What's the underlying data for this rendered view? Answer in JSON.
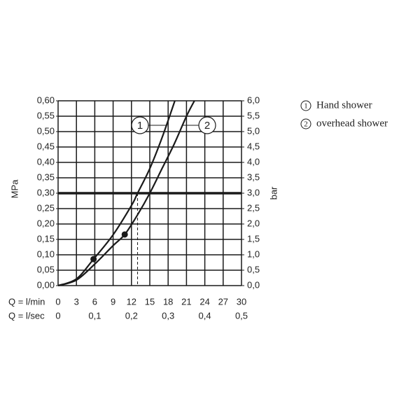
{
  "chart_data": {
    "type": "line",
    "xlabel": "Q = l/min",
    "x2label": "Q = l/sec",
    "ylabel": "MPa",
    "y2label": "bar",
    "xlim": [
      0,
      30
    ],
    "xticks": [
      0,
      3,
      6,
      9,
      12,
      15,
      18,
      21,
      24,
      27,
      30
    ],
    "x2lim": [
      0,
      0.5
    ],
    "x2ticks": [
      0,
      {
        "value": 0.1,
        "label": "0,1"
      },
      {
        "value": 0.2,
        "label": "0,2"
      },
      {
        "value": 0.3,
        "label": "0,3"
      },
      {
        "value": 0.4,
        "label": "0,4"
      },
      {
        "value": 0.5,
        "label": "0,5"
      }
    ],
    "ylim": [
      0,
      0.6
    ],
    "yticks": [
      {
        "value": 0,
        "label": "0,00"
      },
      {
        "value": 0.05,
        "label": "0,05"
      },
      {
        "value": 0.1,
        "label": "0,10"
      },
      {
        "value": 0.15,
        "label": "0,15"
      },
      {
        "value": 0.2,
        "label": "0,20"
      },
      {
        "value": 0.25,
        "label": "0,25"
      },
      {
        "value": 0.3,
        "label": "0,30"
      },
      {
        "value": 0.35,
        "label": "0,35"
      },
      {
        "value": 0.4,
        "label": "0,40"
      },
      {
        "value": 0.45,
        "label": "0,45"
      },
      {
        "value": 0.5,
        "label": "0,50"
      },
      {
        "value": 0.55,
        "label": "0,55"
      },
      {
        "value": 0.6,
        "label": "0,60"
      }
    ],
    "y2lim": [
      0,
      6
    ],
    "y2ticks": [
      {
        "value": 0,
        "label": "0,0"
      },
      {
        "value": 0.5,
        "label": "0,5"
      },
      {
        "value": 1,
        "label": "1,0"
      },
      {
        "value": 1.5,
        "label": "1,5"
      },
      {
        "value": 2,
        "label": "2,0"
      },
      {
        "value": 2.5,
        "label": "2,5"
      },
      {
        "value": 3,
        "label": "3,0"
      },
      {
        "value": 3.5,
        "label": "3,5"
      },
      {
        "value": 4,
        "label": "4,0"
      },
      {
        "value": 4.5,
        "label": "4,5"
      },
      {
        "value": 5,
        "label": "5,0"
      },
      {
        "value": 5.5,
        "label": "5,5"
      },
      {
        "value": 6,
        "label": "6,0"
      }
    ],
    "grid": true,
    "hline": 0.3,
    "color": "#1a1a1a",
    "series": [
      {
        "name": "Hand shower",
        "label": "1",
        "x": [
          0,
          3,
          5.8,
          9,
          12,
          13,
          15,
          17,
          19.1
        ],
        "values": [
          0,
          0.022,
          0.086,
          0.165,
          0.26,
          0.3,
          0.38,
          0.48,
          0.6
        ],
        "highlight": {
          "x": 5.8,
          "y": 0.086
        }
      },
      {
        "name": "overhead shower",
        "label": "2",
        "x": [
          0,
          3,
          6,
          9,
          10.9,
          13,
          15,
          17,
          19,
          21,
          22.3
        ],
        "values": [
          0,
          0.018,
          0.07,
          0.13,
          0.166,
          0.23,
          0.3,
          0.38,
          0.46,
          0.55,
          0.6
        ],
        "highlight": {
          "x": 10.9,
          "y": 0.166
        }
      }
    ]
  }
}
